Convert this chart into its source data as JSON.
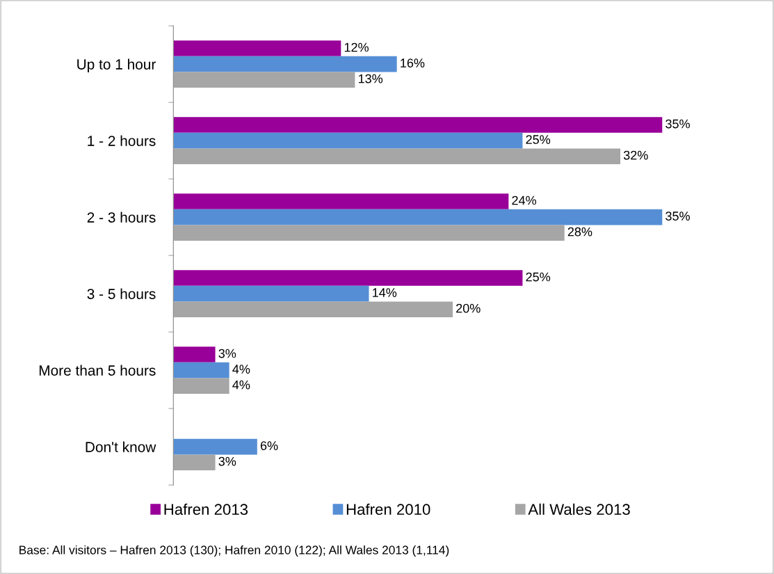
{
  "chart_data": {
    "type": "bar",
    "orientation": "horizontal",
    "categories": [
      "Up to 1 hour",
      "1 - 2 hours",
      "2 - 3 hours",
      "3 - 5 hours",
      "More than 5 hours",
      "Don't know"
    ],
    "series": [
      {
        "name": "Hafren 2013",
        "color": "#990099",
        "values": [
          12,
          35,
          24,
          25,
          3,
          null
        ],
        "value_labels": [
          "12%",
          "35%",
          "24%",
          "25%",
          "3%",
          null
        ]
      },
      {
        "name": "Hafren 2010",
        "color": "#558ed5",
        "values": [
          16,
          25,
          35,
          14,
          4,
          6
        ],
        "value_labels": [
          "16%",
          "25%",
          "35%",
          "14%",
          "4%",
          "6%"
        ]
      },
      {
        "name": "All Wales 2013",
        "color": "#a6a6a6",
        "values": [
          13,
          32,
          28,
          20,
          4,
          3
        ],
        "value_labels": [
          "13%",
          "32%",
          "28%",
          "20%",
          "4%",
          "3%"
        ]
      }
    ],
    "legend": "bottom",
    "grid": false,
    "annotations": [
      "Base: All visitors – Hafren 2013 (130); Hafren 2010 (122); All Wales 2013 (1,114)"
    ]
  }
}
